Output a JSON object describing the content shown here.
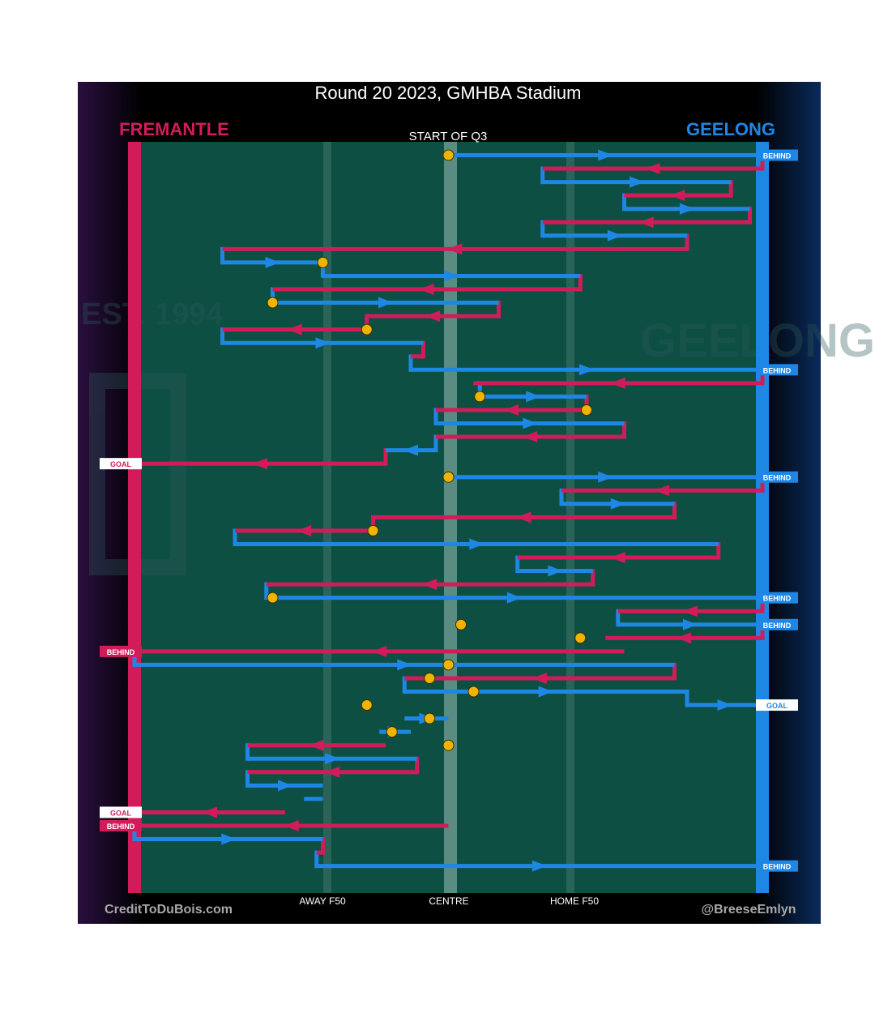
{
  "title": "Round 20 2023, GMHBA Stadium",
  "teams": {
    "left": "FREMANTLE",
    "right": "GEELONG"
  },
  "period_label": "START OF Q3",
  "x_labels": {
    "away_f50": "AWAY F50",
    "centre": "CENTRE",
    "home_f50": "HOME F50"
  },
  "footer": {
    "left": "CreditToDuBois.com",
    "right": "@BreeseEmlyn"
  },
  "colors": {
    "fremantle": "#d21c5a",
    "geelong": "#1e87e5",
    "field": "#0d4f43",
    "stoppage": "#f0b400",
    "background": "#000000"
  },
  "background_marks": {
    "left": "EST. 1994",
    "right": "GEELONG"
  },
  "chart_data": {
    "type": "line",
    "description": "Q3 chain-by-chain ball movement; x is field position (0 = Fremantle goal line, 100 = Geelong goal line, 50 = centre), each leg listed top to bottom",
    "xlim": [
      0,
      100
    ],
    "x_ticks": [
      {
        "x": 29,
        "label": "AWAY F50"
      },
      {
        "x": 50,
        "label": "CENTRE"
      },
      {
        "x": 71,
        "label": "HOME F50"
      }
    ],
    "stoppage_markers": [
      [
        50,
        1
      ],
      [
        30,
        9
      ],
      [
        22,
        12
      ],
      [
        37,
        14
      ],
      [
        55,
        19
      ],
      [
        72,
        20
      ],
      [
        50,
        25
      ],
      [
        38,
        29
      ],
      [
        22,
        34
      ],
      [
        52,
        36
      ],
      [
        71,
        37
      ],
      [
        50,
        39
      ],
      [
        47,
        40
      ],
      [
        54,
        41
      ],
      [
        37,
        42
      ],
      [
        47,
        43
      ],
      [
        41,
        44
      ],
      [
        50,
        45
      ]
    ],
    "legs": [
      {
        "team": "Geelong",
        "row": 1,
        "from": 50,
        "to": 100,
        "result": "BEHIND"
      },
      {
        "team": "Fremantle",
        "row": 2,
        "from": 100,
        "to": 65
      },
      {
        "team": "Geelong",
        "row": 3,
        "from": 65,
        "to": 95
      },
      {
        "team": "Fremantle",
        "row": 4,
        "from": 95,
        "to": 78
      },
      {
        "team": "Geelong",
        "row": 5,
        "from": 78,
        "to": 98
      },
      {
        "team": "Fremantle",
        "row": 6,
        "from": 98,
        "to": 65
      },
      {
        "team": "Geelong",
        "row": 7,
        "from": 65,
        "to": 88
      },
      {
        "team": "Fremantle",
        "row": 8,
        "from": 88,
        "to": 14
      },
      {
        "team": "Geelong",
        "row": 9,
        "from": 14,
        "to": 30
      },
      {
        "team": "Geelong",
        "row": 10,
        "from": 30,
        "to": 71
      },
      {
        "team": "Fremantle",
        "row": 11,
        "from": 71,
        "to": 22
      },
      {
        "team": "Geelong",
        "row": 12,
        "from": 22,
        "to": 58
      },
      {
        "team": "Fremantle",
        "row": 13,
        "from": 58,
        "to": 37
      },
      {
        "team": "Fremantle",
        "row": 14,
        "from": 37,
        "to": 14
      },
      {
        "team": "Geelong",
        "row": 15,
        "from": 14,
        "to": 46
      },
      {
        "team": "Fremantle",
        "row": 16,
        "from": 46,
        "to": 44
      },
      {
        "team": "Geelong",
        "row": 17,
        "from": 44,
        "to": 100,
        "result": "BEHIND"
      },
      {
        "team": "Fremantle",
        "row": 18,
        "from": 100,
        "to": 54
      },
      {
        "team": "Geelong",
        "row": 19,
        "from": 55,
        "to": 72
      },
      {
        "team": "Fremantle",
        "row": 20,
        "from": 72,
        "to": 48
      },
      {
        "team": "Geelong",
        "row": 21,
        "from": 48,
        "to": 78
      },
      {
        "team": "Fremantle",
        "row": 22,
        "from": 78,
        "to": 48
      },
      {
        "team": "Geelong",
        "row": 23,
        "from": 48,
        "to": 40
      },
      {
        "team": "Fremantle",
        "row": 24,
        "from": 40,
        "to": 0,
        "result": "GOAL"
      },
      {
        "team": "Geelong",
        "row": 25,
        "from": 50,
        "to": 100,
        "result": "BEHIND"
      },
      {
        "team": "Fremantle",
        "row": 26,
        "from": 100,
        "to": 68
      },
      {
        "team": "Geelong",
        "row": 27,
        "from": 68,
        "to": 86
      },
      {
        "team": "Fremantle",
        "row": 28,
        "from": 86,
        "to": 38
      },
      {
        "team": "Fremantle",
        "row": 29,
        "from": 38,
        "to": 16
      },
      {
        "team": "Geelong",
        "row": 30,
        "from": 16,
        "to": 93
      },
      {
        "team": "Fremantle",
        "row": 31,
        "from": 93,
        "to": 61
      },
      {
        "team": "Geelong",
        "row": 32,
        "from": 61,
        "to": 73
      },
      {
        "team": "Fremantle",
        "row": 33,
        "from": 73,
        "to": 21
      },
      {
        "team": "Geelong",
        "row": 34,
        "from": 21,
        "to": 100,
        "result": "BEHIND"
      },
      {
        "team": "Fremantle",
        "row": 35,
        "from": 100,
        "to": 77
      },
      {
        "team": "Geelong",
        "row": 36,
        "from": 77,
        "to": 100,
        "result": "BEHIND"
      },
      {
        "team": "Fremantle",
        "row": 37,
        "from": 100,
        "to": 75
      },
      {
        "team": "Fremantle",
        "row": 38,
        "from": 78,
        "to": 0,
        "result": "BEHIND"
      },
      {
        "team": "Geelong",
        "row": 39,
        "from": 0,
        "to": 86
      },
      {
        "team": "Fremantle",
        "row": 40,
        "from": 86,
        "to": 43
      },
      {
        "team": "Geelong",
        "row": 41,
        "from": 43,
        "to": 88
      },
      {
        "team": "Geelong",
        "row": 42,
        "from": 88,
        "to": 100,
        "result": "GOAL"
      },
      {
        "team": "Geelong",
        "row": 43,
        "from": 43,
        "to": 50
      },
      {
        "team": "Geelong",
        "row": 44,
        "from": 39,
        "to": 44
      },
      {
        "team": "Fremantle",
        "row": 45,
        "from": 40,
        "to": 18
      },
      {
        "team": "Geelong",
        "row": 46,
        "from": 18,
        "to": 45
      },
      {
        "team": "Fremantle",
        "row": 47,
        "from": 45,
        "to": 18
      },
      {
        "team": "Geelong",
        "row": 48,
        "from": 18,
        "to": 30
      },
      {
        "team": "Geelong",
        "row": 49,
        "from": 27,
        "to": 30
      },
      {
        "team": "Fremantle",
        "row": 50,
        "from": 24,
        "to": 0,
        "result": "GOAL"
      },
      {
        "team": "Fremantle",
        "row": 51,
        "from": 50,
        "to": 0,
        "result": "BEHIND"
      },
      {
        "team": "Geelong",
        "row": 52,
        "from": 0,
        "to": 30
      },
      {
        "team": "Fremantle",
        "row": 53,
        "from": 30,
        "to": 29
      },
      {
        "team": "Geelong",
        "row": 54,
        "from": 29,
        "to": 100,
        "result": "BEHIND"
      }
    ]
  }
}
